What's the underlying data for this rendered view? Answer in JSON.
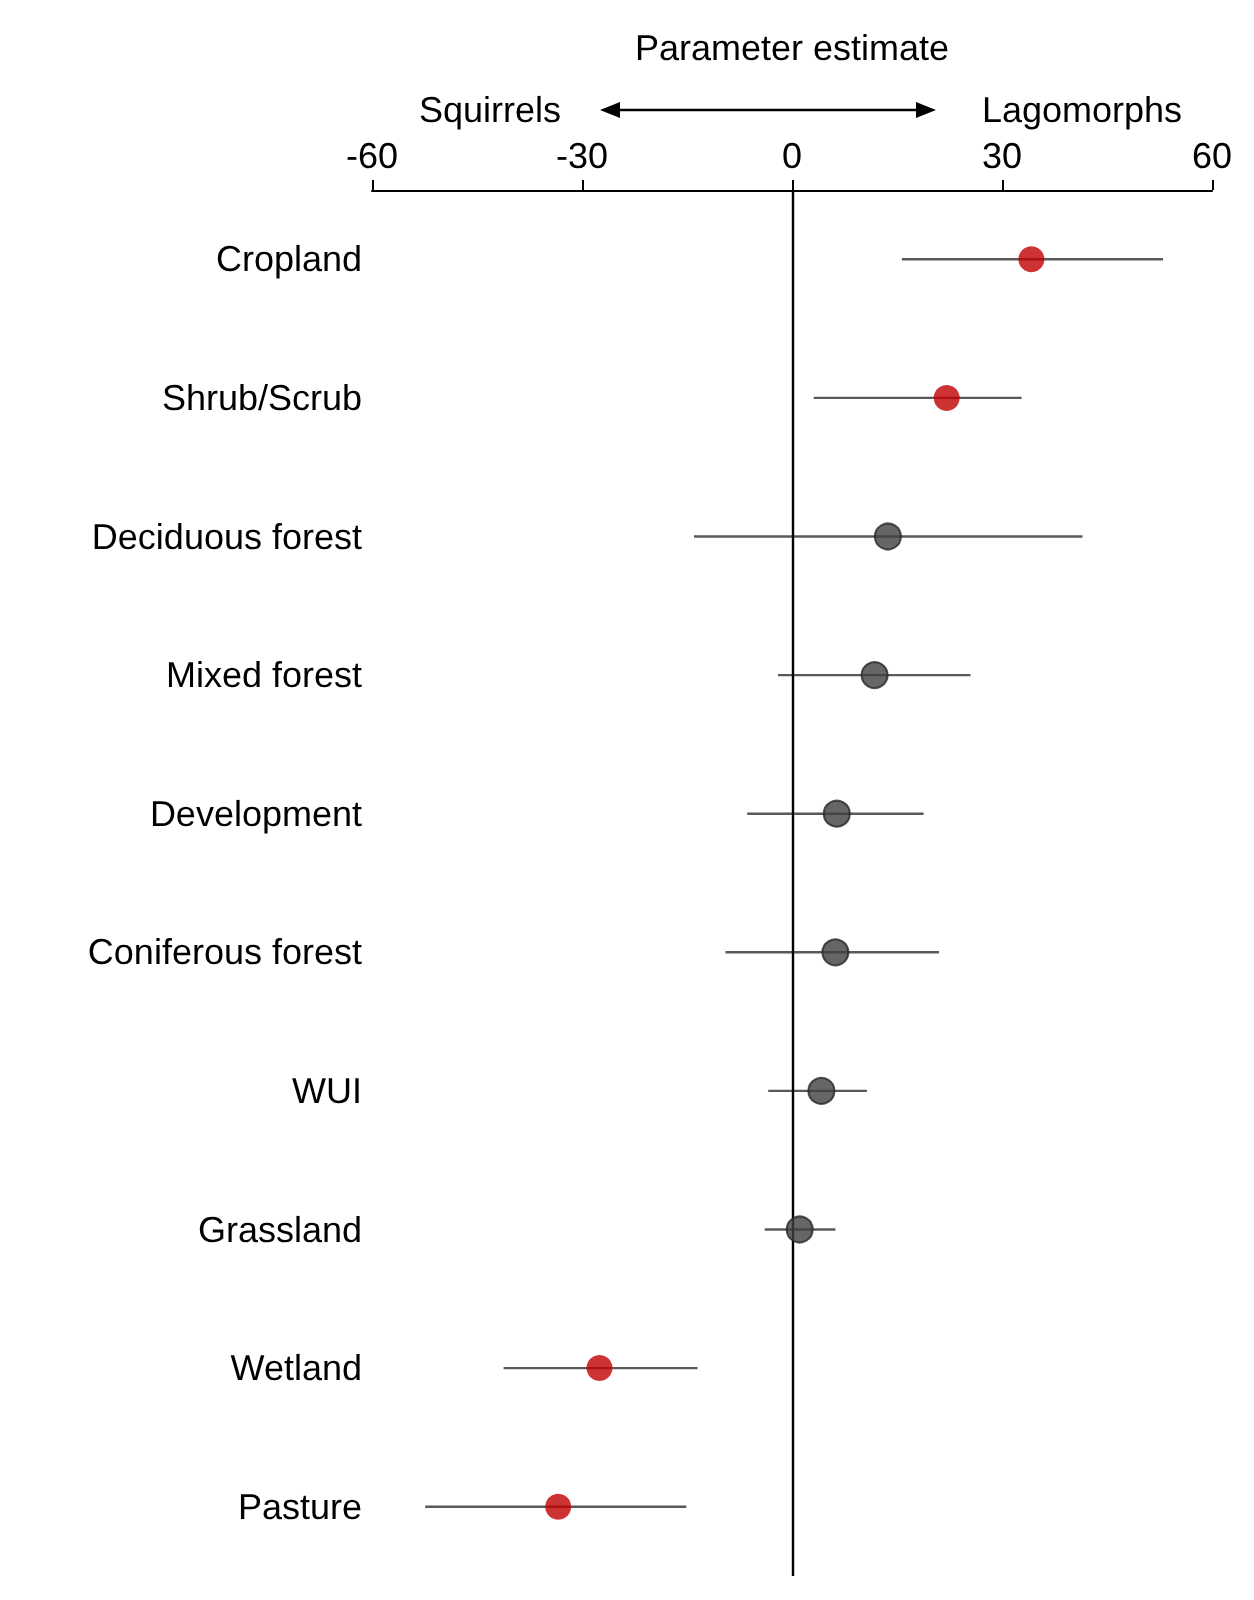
{
  "chart_data": {
    "type": "scatter",
    "orientation": "horizontal",
    "xlabel": "Parameter estimate",
    "annotations": [
      "Squirrels",
      "Lagomorphs"
    ],
    "categories": [
      "Cropland",
      "Shrub/Scrub",
      "Deciduous forest",
      "Mixed forest",
      "Development",
      "Coniferous forest",
      "WUI",
      "Grassland",
      "Wetland",
      "Pasture"
    ],
    "values": [
      34.2,
      22.1,
      13.7,
      11.8,
      6.4,
      6.2,
      4.2,
      1.1,
      -27.5,
      -33.4
    ],
    "errors": [
      [
        15.7,
        53.0
      ],
      [
        3.1,
        32.8
      ],
      [
        -14.0,
        41.5
      ],
      [
        -2.0,
        25.5
      ],
      [
        -6.4,
        18.8
      ],
      [
        -9.5,
        21.0
      ],
      [
        -3.4,
        10.7
      ],
      [
        -3.9,
        6.2
      ],
      [
        -41.2,
        -13.5
      ],
      [
        -52.4,
        -15.1
      ]
    ],
    "colors": [
      "#c00000",
      "#c00000",
      "#404040",
      "#404040",
      "#404040",
      "#404040",
      "#404040",
      "#404040",
      "#c00000",
      "#c00000"
    ],
    "xlim": [
      -60,
      60
    ],
    "xticks": [
      -60,
      -30,
      0,
      30,
      60
    ],
    "ref_lines": [
      {
        "axis": "x",
        "value": 0,
        "color": "#000000"
      }
    ],
    "marker": "circle",
    "grid": false
  }
}
